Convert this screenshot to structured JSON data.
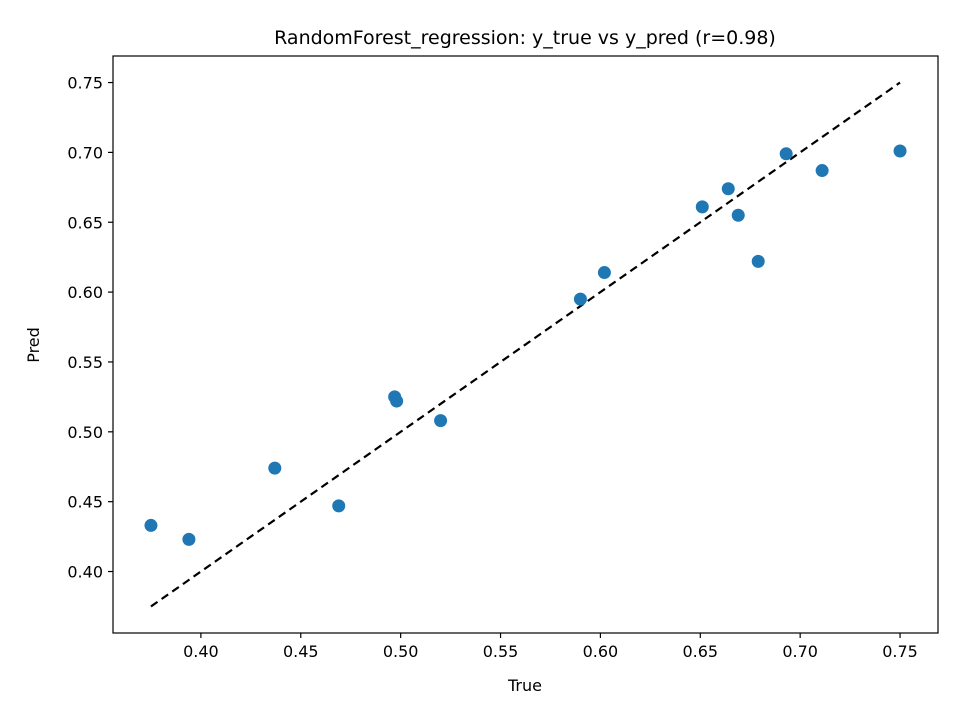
{
  "chart_data": {
    "type": "scatter",
    "title": "RandomForest_regression: y_true vs y_pred (r=0.98)",
    "xlabel": "True",
    "ylabel": "Pred",
    "xlim": [
      0.356,
      0.769
    ],
    "ylim": [
      0.356,
      0.769
    ],
    "xticks": [
      "0.40",
      "0.45",
      "0.50",
      "0.55",
      "0.60",
      "0.65",
      "0.70",
      "0.75"
    ],
    "yticks": [
      "0.40",
      "0.45",
      "0.50",
      "0.55",
      "0.60",
      "0.65",
      "0.70",
      "0.75"
    ],
    "grid": false,
    "point_color": "#1f77b4",
    "reference_line": {
      "style": "dashed",
      "color": "#000000",
      "from": [
        0.375,
        0.375
      ],
      "to": [
        0.75,
        0.75
      ]
    },
    "points": [
      {
        "x": 0.375,
        "y": 0.433
      },
      {
        "x": 0.394,
        "y": 0.423
      },
      {
        "x": 0.437,
        "y": 0.474
      },
      {
        "x": 0.469,
        "y": 0.447
      },
      {
        "x": 0.497,
        "y": 0.525
      },
      {
        "x": 0.498,
        "y": 0.522
      },
      {
        "x": 0.52,
        "y": 0.508
      },
      {
        "x": 0.59,
        "y": 0.595
      },
      {
        "x": 0.602,
        "y": 0.614
      },
      {
        "x": 0.651,
        "y": 0.661
      },
      {
        "x": 0.664,
        "y": 0.674
      },
      {
        "x": 0.669,
        "y": 0.655
      },
      {
        "x": 0.679,
        "y": 0.622
      },
      {
        "x": 0.693,
        "y": 0.699
      },
      {
        "x": 0.711,
        "y": 0.687
      },
      {
        "x": 0.75,
        "y": 0.701
      }
    ]
  }
}
